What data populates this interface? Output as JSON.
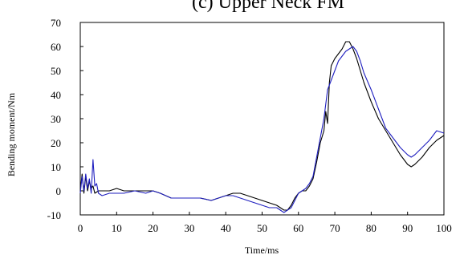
{
  "chart_data": {
    "type": "line",
    "title": "(c) Upper Neck FM",
    "xlabel": "Time/ms",
    "ylabel": "Bending moment/Nm",
    "xlim": [
      0,
      100
    ],
    "ylim": [
      -10,
      70
    ],
    "x_ticks": [
      "0",
      "10",
      "20",
      "30",
      "40",
      "50",
      "60",
      "70",
      "80",
      "90",
      "100"
    ],
    "y_ticks": [
      "-10",
      "0",
      "10",
      "20",
      "30",
      "40",
      "50",
      "60",
      "70"
    ],
    "grid": false,
    "legend": "none",
    "series": [
      {
        "color": "#000000",
        "x": [
          0,
          0.5,
          1,
          1.5,
          2,
          2.5,
          3,
          3.5,
          4,
          5,
          6,
          8,
          9,
          10,
          12,
          15,
          18,
          20,
          22,
          25,
          28,
          30,
          33,
          36,
          38,
          40,
          42,
          44,
          46,
          48,
          50,
          52,
          54,
          55,
          56,
          57,
          58,
          59,
          60,
          61,
          62,
          63,
          64,
          65,
          66,
          67,
          67.5,
          68,
          68.5,
          69,
          70,
          71,
          72,
          73,
          74,
          75,
          76,
          77,
          78,
          80,
          82,
          84,
          86,
          88,
          90,
          91,
          92,
          94,
          96,
          98,
          100
        ],
        "y": [
          0,
          7,
          -1,
          6,
          0,
          4,
          1,
          2,
          -1,
          0,
          0,
          0,
          0.5,
          1,
          0,
          0,
          0,
          0,
          -1,
          -3,
          -3,
          -3,
          -3,
          -4,
          -3,
          -2,
          -1,
          -1,
          -2,
          -3,
          -4,
          -5,
          -6,
          -7,
          -8,
          -8,
          -6,
          -3,
          -1,
          0,
          0,
          2,
          5,
          12,
          20,
          25,
          33,
          28,
          45,
          52,
          55,
          57,
          59,
          62,
          62,
          59,
          55,
          50,
          45,
          37,
          30,
          25,
          20,
          15,
          11,
          10,
          11,
          14,
          18,
          21,
          23
        ]
      },
      {
        "color": "#1f1fbf",
        "x": [
          0,
          0.5,
          1,
          1.5,
          2,
          2.5,
          3,
          3.5,
          4,
          4.5,
          5,
          6,
          8,
          10,
          12,
          15,
          18,
          20,
          22,
          25,
          28,
          30,
          33,
          36,
          38,
          40,
          42,
          44,
          46,
          48,
          50,
          52,
          54,
          55,
          56,
          57,
          58,
          59,
          60,
          61,
          62,
          63,
          64,
          65,
          66,
          67,
          68,
          69,
          70,
          71,
          72,
          73,
          74,
          75,
          76,
          77,
          78,
          80,
          82,
          84,
          86,
          88,
          90,
          91,
          92,
          94,
          96,
          98,
          100
        ],
        "y": [
          -1,
          6,
          0,
          7,
          1,
          5,
          -1,
          13,
          2,
          3,
          -1,
          -2,
          -1,
          -1,
          -1,
          0,
          -1,
          0,
          -1,
          -3,
          -3,
          -3,
          -3,
          -4,
          -3,
          -2,
          -2,
          -3,
          -4,
          -5,
          -6,
          -7,
          -7,
          -8,
          -9,
          -8,
          -7,
          -4,
          -1,
          0,
          1,
          3,
          6,
          14,
          22,
          30,
          42,
          46,
          50,
          54,
          56,
          58,
          59,
          60,
          58,
          54,
          49,
          42,
          34,
          26,
          22,
          18,
          15,
          14,
          15,
          18,
          21,
          25,
          24
        ]
      }
    ]
  }
}
